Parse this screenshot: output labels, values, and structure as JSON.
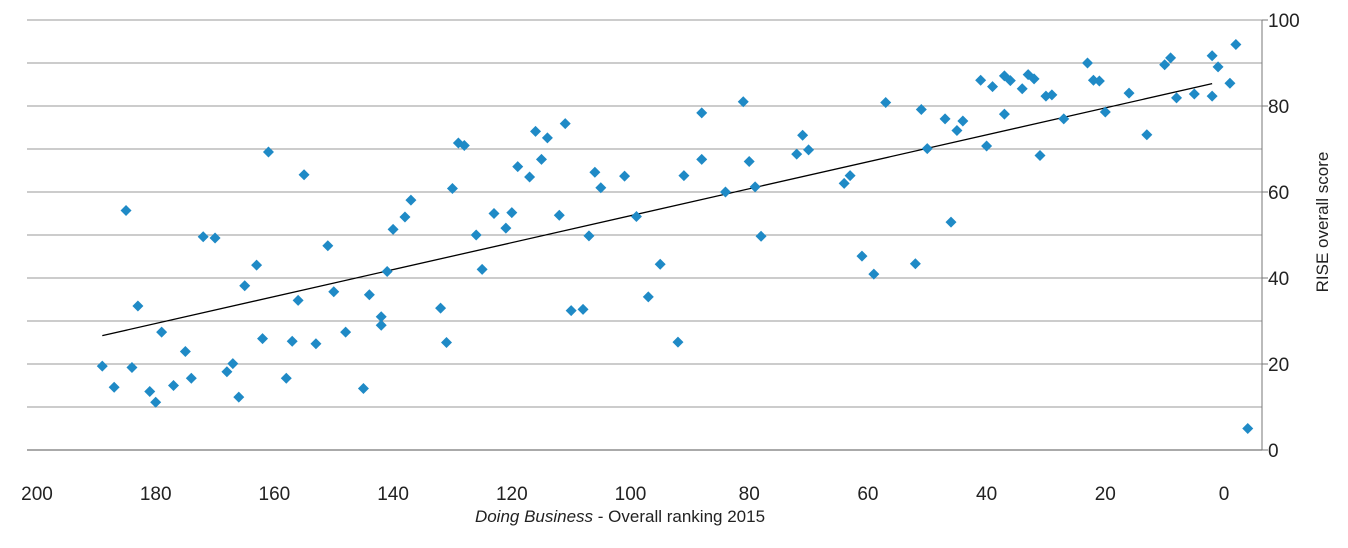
{
  "chart_data": {
    "type": "scatter",
    "xlabel": {
      "italic_part": "Doing  Business",
      "regular_part": " - Overall ranking 2015"
    },
    "ylabel": "RISE overall score",
    "x_axis_reversed": true,
    "xlim": [
      200,
      -5
    ],
    "ylim": [
      0,
      100
    ],
    "x_ticks": [
      200,
      180,
      160,
      140,
      120,
      100,
      80,
      60,
      40,
      20,
      0
    ],
    "y_ticks": [
      0,
      20,
      40,
      60,
      80,
      100
    ],
    "y_axis_side": "right",
    "grid": "horizontal, every 10 units",
    "marker": "diamond",
    "marker_color": "#1f8ac6",
    "trendline_color": "#000000",
    "trendline": {
      "x": [
        189,
        2
      ],
      "y": [
        26.6,
        85.2
      ]
    },
    "points": [
      {
        "x": 189,
        "y": 19.5
      },
      {
        "x": 187,
        "y": 14.6
      },
      {
        "x": 185,
        "y": 55.7
      },
      {
        "x": 184,
        "y": 19.2
      },
      {
        "x": 183,
        "y": 33.5
      },
      {
        "x": 181,
        "y": 13.6
      },
      {
        "x": 180,
        "y": 11.1
      },
      {
        "x": 179,
        "y": 27.4
      },
      {
        "x": 177,
        "y": 15.0
      },
      {
        "x": 175,
        "y": 22.9
      },
      {
        "x": 174,
        "y": 16.7
      },
      {
        "x": 172,
        "y": 49.6
      },
      {
        "x": 170,
        "y": 49.3
      },
      {
        "x": 168,
        "y": 18.2
      },
      {
        "x": 167,
        "y": 20.1
      },
      {
        "x": 166,
        "y": 12.3
      },
      {
        "x": 165,
        "y": 38.2
      },
      {
        "x": 163,
        "y": 43.0
      },
      {
        "x": 162,
        "y": 25.9
      },
      {
        "x": 161,
        "y": 69.3
      },
      {
        "x": 158,
        "y": 16.7
      },
      {
        "x": 157,
        "y": 25.3
      },
      {
        "x": 156,
        "y": 34.8
      },
      {
        "x": 155,
        "y": 64.0
      },
      {
        "x": 153,
        "y": 24.7
      },
      {
        "x": 151,
        "y": 47.5
      },
      {
        "x": 150,
        "y": 36.8
      },
      {
        "x": 148,
        "y": 27.4
      },
      {
        "x": 145,
        "y": 14.3
      },
      {
        "x": 144,
        "y": 36.1
      },
      {
        "x": 142,
        "y": 31.0
      },
      {
        "x": 142,
        "y": 29.0
      },
      {
        "x": 141,
        "y": 41.5
      },
      {
        "x": 140,
        "y": 51.3
      },
      {
        "x": 138,
        "y": 54.2
      },
      {
        "x": 137,
        "y": 58.1
      },
      {
        "x": 132,
        "y": 33.0
      },
      {
        "x": 131,
        "y": 25.0
      },
      {
        "x": 130,
        "y": 60.8
      },
      {
        "x": 129,
        "y": 71.4
      },
      {
        "x": 128,
        "y": 70.8
      },
      {
        "x": 126,
        "y": 50.0
      },
      {
        "x": 125,
        "y": 42.0
      },
      {
        "x": 123,
        "y": 55.0
      },
      {
        "x": 121,
        "y": 51.6
      },
      {
        "x": 120,
        "y": 55.2
      },
      {
        "x": 119,
        "y": 65.9
      },
      {
        "x": 117,
        "y": 63.5
      },
      {
        "x": 116,
        "y": 74.1
      },
      {
        "x": 115,
        "y": 67.6
      },
      {
        "x": 114,
        "y": 72.6
      },
      {
        "x": 112,
        "y": 54.6
      },
      {
        "x": 111,
        "y": 75.9
      },
      {
        "x": 110,
        "y": 32.4
      },
      {
        "x": 108,
        "y": 32.7
      },
      {
        "x": 107,
        "y": 49.8
      },
      {
        "x": 106,
        "y": 64.6
      },
      {
        "x": 105,
        "y": 61.0
      },
      {
        "x": 101,
        "y": 63.7
      },
      {
        "x": 99,
        "y": 54.3
      },
      {
        "x": 97,
        "y": 35.6
      },
      {
        "x": 95,
        "y": 43.2
      },
      {
        "x": 92,
        "y": 25.1
      },
      {
        "x": 91,
        "y": 63.8
      },
      {
        "x": 88,
        "y": 78.4
      },
      {
        "x": 88,
        "y": 67.6
      },
      {
        "x": 84,
        "y": 60.0
      },
      {
        "x": 81,
        "y": 81.0
      },
      {
        "x": 80,
        "y": 67.1
      },
      {
        "x": 79,
        "y": 61.2
      },
      {
        "x": 78,
        "y": 49.7
      },
      {
        "x": 72,
        "y": 68.8
      },
      {
        "x": 71,
        "y": 73.2
      },
      {
        "x": 70,
        "y": 69.8
      },
      {
        "x": 64,
        "y": 62.0
      },
      {
        "x": 63,
        "y": 63.8
      },
      {
        "x": 61,
        "y": 45.1
      },
      {
        "x": 59,
        "y": 40.9
      },
      {
        "x": 57,
        "y": 80.8
      },
      {
        "x": 52,
        "y": 43.3
      },
      {
        "x": 51,
        "y": 79.2
      },
      {
        "x": 50,
        "y": 70.1
      },
      {
        "x": 47,
        "y": 77.0
      },
      {
        "x": 46,
        "y": 53.0
      },
      {
        "x": 45,
        "y": 74.3
      },
      {
        "x": 44,
        "y": 76.5
      },
      {
        "x": 41,
        "y": 86.0
      },
      {
        "x": 40,
        "y": 70.7
      },
      {
        "x": 39,
        "y": 84.5
      },
      {
        "x": 37,
        "y": 87.0
      },
      {
        "x": 37,
        "y": 78.1
      },
      {
        "x": 36,
        "y": 85.9
      },
      {
        "x": 34,
        "y": 84.0
      },
      {
        "x": 33,
        "y": 87.3
      },
      {
        "x": 32,
        "y": 86.3
      },
      {
        "x": 31,
        "y": 68.5
      },
      {
        "x": 30,
        "y": 82.3
      },
      {
        "x": 29,
        "y": 82.6
      },
      {
        "x": 27,
        "y": 77.0
      },
      {
        "x": 23,
        "y": 90.0
      },
      {
        "x": 22,
        "y": 86.0
      },
      {
        "x": 21,
        "y": 85.8
      },
      {
        "x": 20,
        "y": 78.6
      },
      {
        "x": 16,
        "y": 83.0
      },
      {
        "x": 13,
        "y": 73.3
      },
      {
        "x": 10,
        "y": 89.6
      },
      {
        "x": 9,
        "y": 91.2
      },
      {
        "x": 8,
        "y": 81.9
      },
      {
        "x": 5,
        "y": 82.8
      },
      {
        "x": 2,
        "y": 82.3
      },
      {
        "x": 2,
        "y": 91.7
      },
      {
        "x": 1,
        "y": 89.1
      },
      {
        "x": -1,
        "y": 85.3
      },
      {
        "x": -2,
        "y": 94.3
      },
      {
        "x": -4,
        "y": 5.0
      }
    ]
  }
}
